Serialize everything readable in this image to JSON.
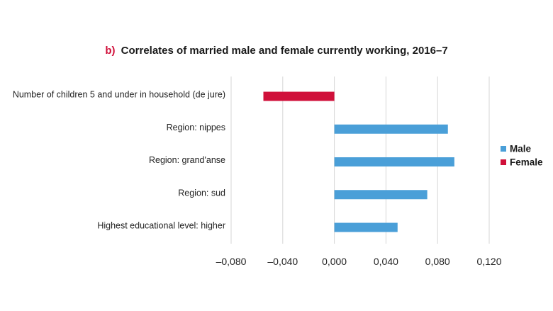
{
  "chart_data": {
    "type": "bar",
    "orientation": "horizontal",
    "title_prefix": "b)",
    "title": "Correlates of married male and female currently working, 2016–7",
    "categories": [
      "Number of children 5 and under in household (de jure)",
      "Region: nippes",
      "Region: grand'anse",
      "Region: sud",
      "Highest educational level: higher"
    ],
    "series": [
      {
        "name": "Male",
        "color": "#4a9fd8",
        "values": [
          null,
          0.088,
          0.093,
          0.072,
          0.049
        ]
      },
      {
        "name": "Female",
        "color": "#d0103a",
        "values": [
          -0.055,
          null,
          null,
          null,
          null
        ]
      }
    ],
    "xlim": [
      -0.08,
      0.12
    ],
    "xticks": [
      -0.08,
      -0.04,
      0.0,
      0.04,
      0.08,
      0.12
    ],
    "xtick_labels": [
      "–0,080",
      "–0,040",
      "0,000",
      "0,040",
      "0,080",
      "0,120"
    ],
    "grid": true,
    "legend_position": "right"
  }
}
